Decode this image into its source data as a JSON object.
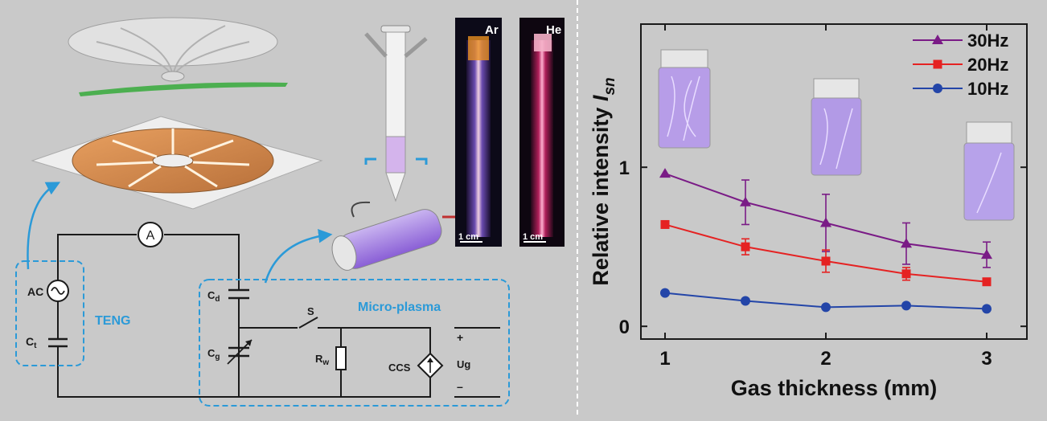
{
  "left_panel": {
    "photo_labels": [
      "Ar",
      "He"
    ],
    "scale_bar": "1 cm",
    "circuit": {
      "ammeter": "A",
      "ac_source": "AC",
      "teng_cap": "C",
      "teng_cap_sub": "t",
      "teng_label": "TENG",
      "cd": "C",
      "cd_sub": "d",
      "cg": "C",
      "cg_sub": "g",
      "switch": "S",
      "rw": "R",
      "rw_sub": "w",
      "ccs": "CCS",
      "ug": "Ug",
      "plus": "+",
      "minus": "–",
      "plasma_label": "Micro-plasma"
    },
    "colors": {
      "dashed_box": "#2b9ad8",
      "arrow": "#2b9ad8"
    }
  },
  "chart_data": {
    "type": "line",
    "xlabel": "Gas thickness (mm)",
    "ylabel": "Relative intensity ",
    "ylabel_symbol": "I",
    "ylabel_sub": "sn",
    "xlim": [
      0.85,
      3.25
    ],
    "ylim": [
      -0.08,
      1.9
    ],
    "xticks": [
      1,
      2,
      3
    ],
    "yticks": [
      0,
      1
    ],
    "legend_position": "top-right",
    "x": [
      1,
      1.5,
      2,
      2.5,
      3
    ],
    "series": [
      {
        "name": "30Hz",
        "color": "#7a1b86",
        "marker": "triangle",
        "values": [
          0.96,
          0.78,
          0.65,
          0.52,
          0.45
        ],
        "errors": [
          0,
          0.14,
          0.18,
          0.13,
          0.08
        ]
      },
      {
        "name": "20Hz",
        "color": "#e52222",
        "marker": "square",
        "values": [
          0.64,
          0.5,
          0.41,
          0.33,
          0.28
        ],
        "errors": [
          0,
          0.05,
          0.07,
          0.04,
          0.02
        ]
      },
      {
        "name": "10Hz",
        "color": "#2345a8",
        "marker": "circle",
        "values": [
          0.21,
          0.16,
          0.12,
          0.13,
          0.11
        ],
        "errors": [
          0,
          0,
          0,
          0,
          0
        ]
      }
    ]
  }
}
